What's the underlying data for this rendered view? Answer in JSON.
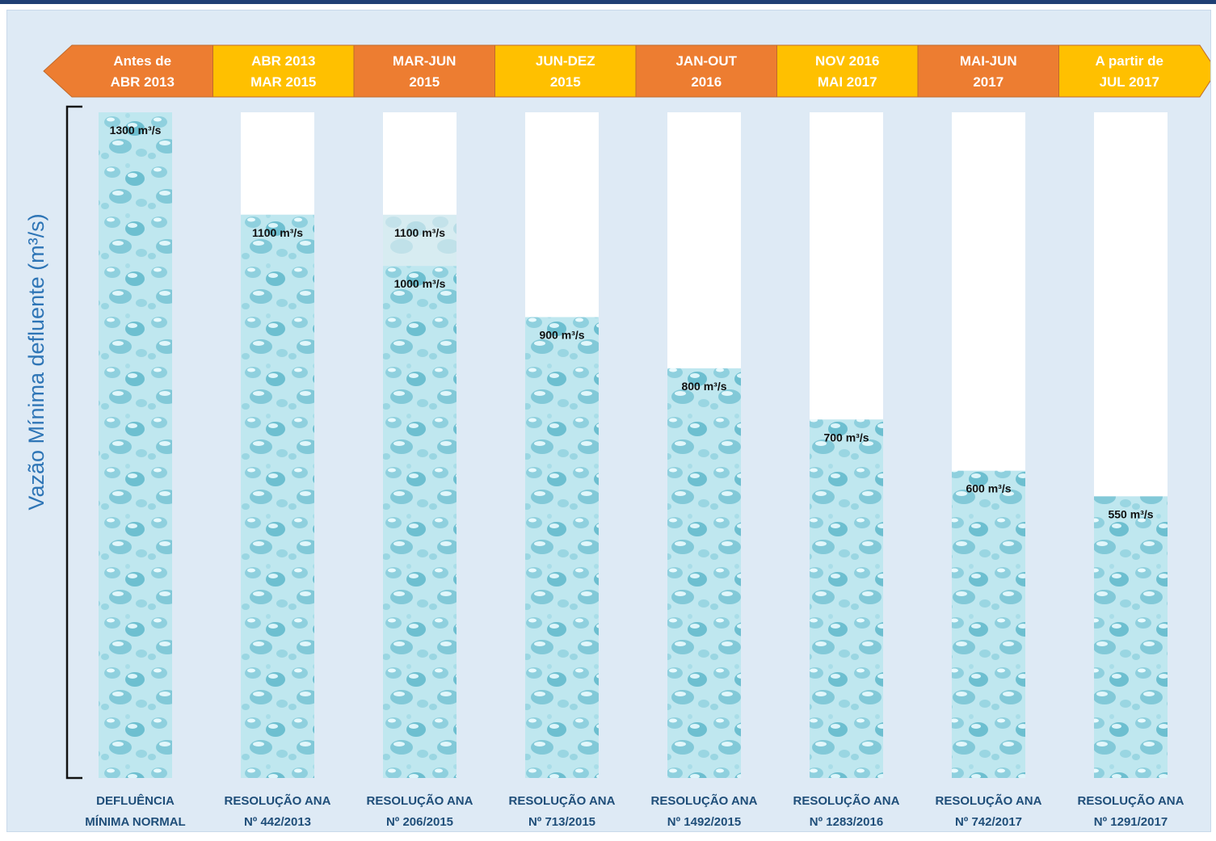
{
  "colors": {
    "frame": "#1f3f74",
    "background": "#deeaf5",
    "timeline_orange": "#ed7d31",
    "timeline_gold": "#ffc000",
    "water_light": "#b9e6ee",
    "water_dark": "#5fb6c9",
    "bar_top": "#ffffff",
    "category_text": "#1f4e79",
    "axis_title": "#2e75b6"
  },
  "timeline": [
    {
      "line1": "Antes de",
      "line2": "ABR 2013",
      "color": "orange"
    },
    {
      "line1": "ABR 2013",
      "line2": "MAR 2015",
      "color": "gold"
    },
    {
      "line1": "MAR-JUN",
      "line2": "2015",
      "color": "orange"
    },
    {
      "line1": "JUN-DEZ",
      "line2": "2015",
      "color": "gold"
    },
    {
      "line1": "JAN-OUT",
      "line2": "2016",
      "color": "orange"
    },
    {
      "line1": "NOV 2016",
      "line2": "MAI 2017",
      "color": "gold"
    },
    {
      "line1": "MAI-JUN",
      "line2": "2017",
      "color": "orange"
    },
    {
      "line1": "A partir de",
      "line2": "JUL 2017",
      "color": "gold"
    }
  ],
  "chart_data": {
    "type": "bar",
    "ylabel": "Vazão Mínima defluente (m³/s)",
    "ylim": [
      0,
      1300
    ],
    "categories": [
      {
        "line1": "DEFLUÊNCIA",
        "line2": "MÍNIMA NORMAL"
      },
      {
        "line1": "RESOLUÇÃO ANA",
        "line2": "Nº 442/2013"
      },
      {
        "line1": "RESOLUÇÃO ANA",
        "line2": "Nº 206/2015"
      },
      {
        "line1": "RESOLUÇÃO ANA",
        "line2": "Nº 713/2015"
      },
      {
        "line1": "RESOLUÇÃO ANA",
        "line2": "Nº 1492/2015"
      },
      {
        "line1": "RESOLUÇÃO ANA",
        "line2": "Nº 1283/2016"
      },
      {
        "line1": "RESOLUÇÃO ANA",
        "line2": "Nº 742/2017"
      },
      {
        "line1": "RESOLUÇÃO ANA",
        "line2": "Nº 1291/2017"
      }
    ],
    "values": [
      1300,
      1100,
      1000,
      900,
      800,
      700,
      600,
      550
    ],
    "value_labels": [
      "1300 m³/s",
      "1100 m³/s",
      "1000 m³/s",
      "900 m³/s",
      "800 m³/s",
      "700 m³/s",
      "600 m³/s",
      "550 m³/s"
    ],
    "secondary_levels": [
      {
        "bar_index": 2,
        "value": 1100,
        "label": "1100 m³/s"
      }
    ],
    "legend": "none",
    "grid": false
  }
}
